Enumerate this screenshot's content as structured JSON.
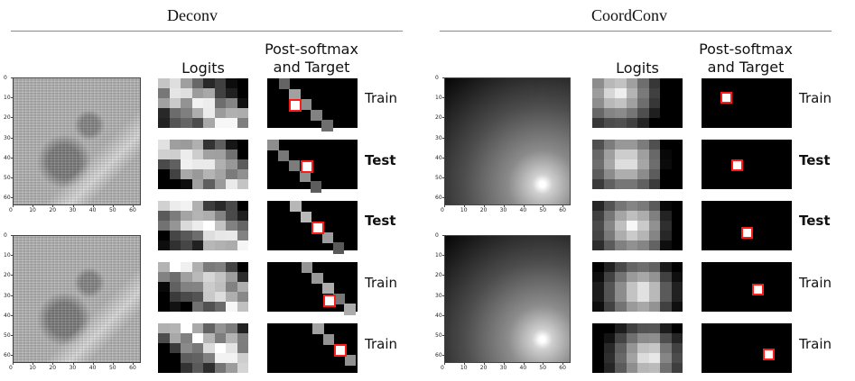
{
  "panels": [
    {
      "title": "Deconv",
      "logits_heading": "Logits",
      "post_heading_line1": "Post-softmax",
      "post_heading_line2": "and Target",
      "rows": [
        {
          "label": "Train",
          "bold": false
        },
        {
          "label": "Test",
          "bold": true
        },
        {
          "label": "Test",
          "bold": true
        },
        {
          "label": "Train",
          "bold": false
        },
        {
          "label": "Train",
          "bold": false
        }
      ]
    },
    {
      "title": "CoordConv",
      "logits_heading": "Logits",
      "post_heading_line1": "Post-softmax",
      "post_heading_line2": "and Target",
      "rows": [
        {
          "label": "Train",
          "bold": false
        },
        {
          "label": "Test",
          "bold": true
        },
        {
          "label": "Test",
          "bold": true
        },
        {
          "label": "Train",
          "bold": false
        },
        {
          "label": "Train",
          "bold": false
        }
      ]
    }
  ],
  "axis_ticks": {
    "x": [
      "0",
      "10",
      "20",
      "30",
      "40",
      "50",
      "60"
    ],
    "y": [
      "0",
      "10",
      "20",
      "30",
      "40",
      "50",
      "60"
    ]
  },
  "colors": {
    "target_border": "#ff1a1a",
    "rule": "#8a8a8a"
  }
}
